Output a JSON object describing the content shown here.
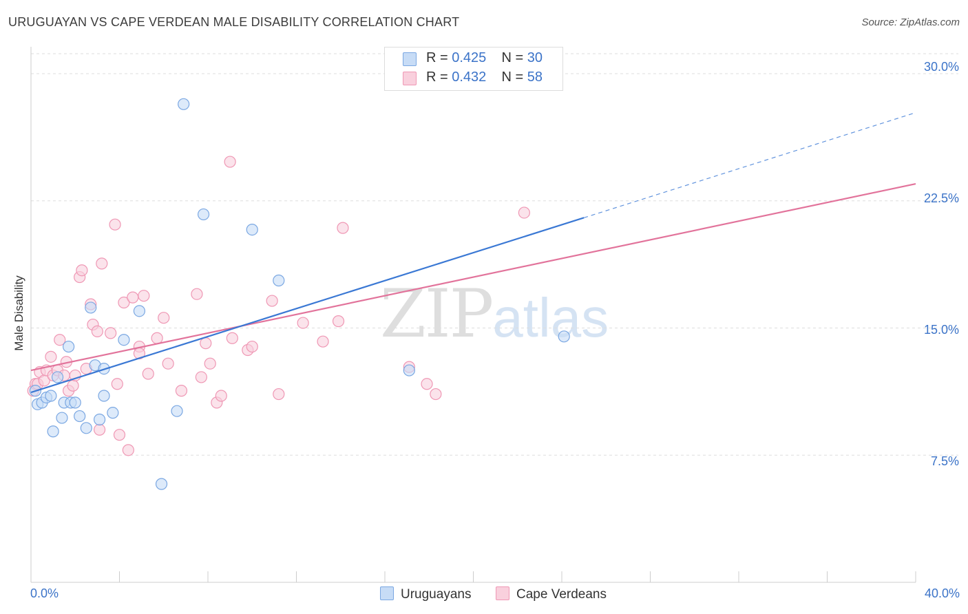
{
  "title": "URUGUAYAN VS CAPE VERDEAN MALE DISABILITY CORRELATION CHART",
  "source": "Source: ZipAtlas.com",
  "watermark": {
    "zip": "ZIP",
    "atlas": "atlas"
  },
  "legend": {
    "rows": [
      {
        "r_label": "R =",
        "r_value": "0.425",
        "n_label": "N =",
        "n_value": "30"
      },
      {
        "r_label": "R =",
        "r_value": "0.432",
        "n_label": "N =",
        "n_value": "58"
      }
    ]
  },
  "colors": {
    "blue": "#3a78d4",
    "blue_fill": "#c7dcf6",
    "blue_stroke": "#7aa7e2",
    "pink": "#e2739b",
    "pink_fill": "#f9d0dd",
    "pink_stroke": "#ef97b4",
    "grid": "#dddddd",
    "tick_text": "#3b73c8"
  },
  "chart_data": {
    "type": "scatter",
    "title": "URUGUAYAN VS CAPE VERDEAN MALE DISABILITY CORRELATION CHART",
    "xlabel": "",
    "ylabel": "Male Disability",
    "xlim": [
      0,
      40
    ],
    "ylim": [
      0,
      31.5
    ],
    "x_tick_labels": [
      "0.0%",
      "40.0%"
    ],
    "y_ticks": [
      7.5,
      15.0,
      22.5,
      30.0
    ],
    "y_tick_labels": [
      "7.5%",
      "15.0%",
      "22.5%",
      "30.0%"
    ],
    "grid": true,
    "legend_position": "top-center",
    "series": [
      {
        "name": "Uruguayans",
        "color": "#3a78d4",
        "R": 0.425,
        "N": 30,
        "trend": {
          "x0": 0,
          "y0": 11.2,
          "x1": 25,
          "y1": 21.5,
          "dashed_to_x": 40,
          "dashed_to_y": 27.7
        },
        "points": [
          [
            0.2,
            11.3
          ],
          [
            0.3,
            10.5
          ],
          [
            0.5,
            10.6
          ],
          [
            0.7,
            10.9
          ],
          [
            0.9,
            11.0
          ],
          [
            1.0,
            8.9
          ],
          [
            1.2,
            12.1
          ],
          [
            1.4,
            9.7
          ],
          [
            1.5,
            10.6
          ],
          [
            1.7,
            13.9
          ],
          [
            1.8,
            10.6
          ],
          [
            2.0,
            10.6
          ],
          [
            2.2,
            9.8
          ],
          [
            2.5,
            9.1
          ],
          [
            2.7,
            16.2
          ],
          [
            2.9,
            12.8
          ],
          [
            3.1,
            9.6
          ],
          [
            3.3,
            12.6
          ],
          [
            3.3,
            11.0
          ],
          [
            3.7,
            10.0
          ],
          [
            4.2,
            14.3
          ],
          [
            4.9,
            16.0
          ],
          [
            5.9,
            5.8
          ],
          [
            6.6,
            10.1
          ],
          [
            6.9,
            28.2
          ],
          [
            7.8,
            21.7
          ],
          [
            10.0,
            20.8
          ],
          [
            11.2,
            17.8
          ],
          [
            17.1,
            12.5
          ],
          [
            24.1,
            14.5
          ]
        ]
      },
      {
        "name": "Cape Verdeans",
        "color": "#e2739b",
        "R": 0.432,
        "N": 58,
        "trend": {
          "x0": 0,
          "y0": 12.5,
          "x1": 40,
          "y1": 23.5
        },
        "points": [
          [
            0.1,
            11.3
          ],
          [
            0.2,
            11.7
          ],
          [
            0.3,
            11.7
          ],
          [
            0.4,
            12.4
          ],
          [
            0.6,
            11.9
          ],
          [
            0.7,
            12.5
          ],
          [
            0.9,
            13.3
          ],
          [
            1.0,
            12.2
          ],
          [
            1.2,
            12.5
          ],
          [
            1.3,
            14.3
          ],
          [
            1.5,
            12.2
          ],
          [
            1.6,
            13.0
          ],
          [
            1.7,
            11.3
          ],
          [
            1.9,
            11.6
          ],
          [
            2.0,
            12.2
          ],
          [
            2.2,
            18.0
          ],
          [
            2.3,
            18.4
          ],
          [
            2.5,
            12.6
          ],
          [
            2.7,
            16.4
          ],
          [
            2.8,
            15.2
          ],
          [
            3.0,
            14.8
          ],
          [
            3.2,
            18.8
          ],
          [
            3.1,
            9.0
          ],
          [
            3.6,
            14.7
          ],
          [
            3.8,
            21.1
          ],
          [
            3.9,
            11.7
          ],
          [
            4.0,
            8.7
          ],
          [
            4.2,
            16.5
          ],
          [
            4.4,
            7.8
          ],
          [
            4.6,
            16.8
          ],
          [
            4.9,
            13.9
          ],
          [
            4.9,
            13.5
          ],
          [
            5.1,
            16.9
          ],
          [
            5.3,
            12.3
          ],
          [
            5.7,
            14.4
          ],
          [
            6.0,
            15.6
          ],
          [
            6.2,
            12.9
          ],
          [
            6.8,
            11.3
          ],
          [
            7.5,
            17.0
          ],
          [
            7.7,
            12.1
          ],
          [
            7.9,
            14.1
          ],
          [
            8.1,
            12.9
          ],
          [
            8.4,
            10.6
          ],
          [
            8.6,
            11.0
          ],
          [
            9.0,
            24.8
          ],
          [
            9.1,
            14.4
          ],
          [
            9.8,
            13.7
          ],
          [
            10.0,
            13.9
          ],
          [
            10.9,
            16.6
          ],
          [
            11.2,
            11.1
          ],
          [
            12.3,
            15.3
          ],
          [
            13.2,
            14.2
          ],
          [
            13.9,
            15.4
          ],
          [
            14.1,
            20.9
          ],
          [
            17.1,
            12.7
          ],
          [
            17.9,
            11.7
          ],
          [
            18.3,
            11.1
          ],
          [
            22.3,
            21.8
          ]
        ]
      }
    ]
  },
  "bottom_legend": [
    {
      "label": "Uruguayans"
    },
    {
      "label": "Cape Verdeans"
    }
  ]
}
